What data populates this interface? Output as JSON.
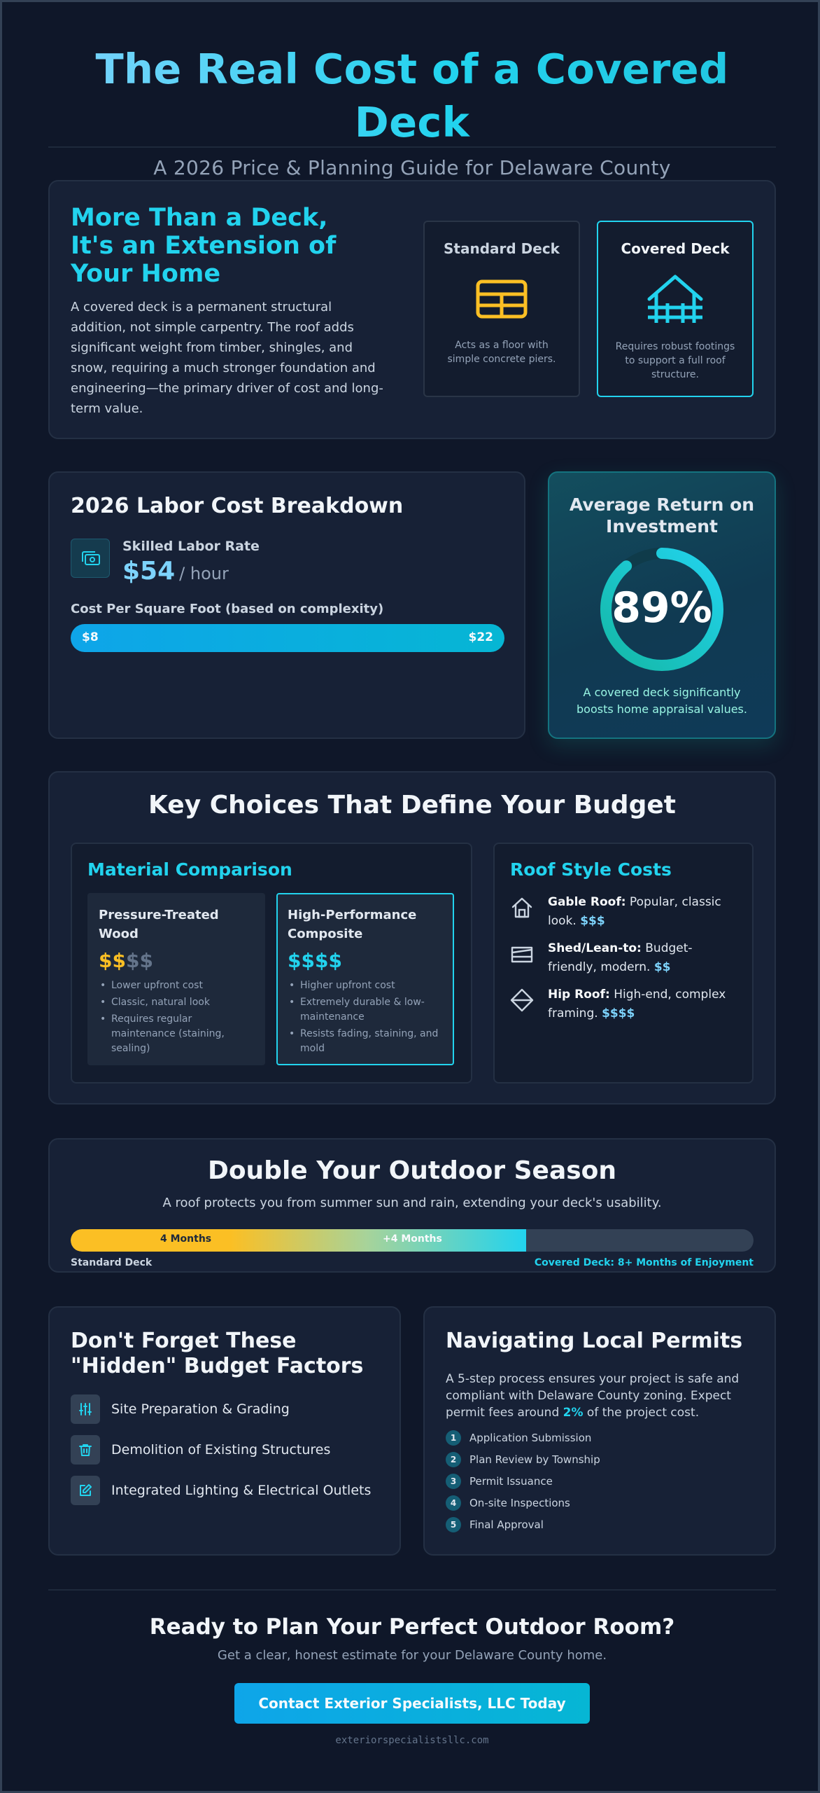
{
  "header": {
    "title": "The Real Cost of a Covered Deck",
    "subtitle": "A 2026 Price & Planning Guide for Delaware County"
  },
  "intro": {
    "title": "More Than a Deck, It's an Extension of Your Home",
    "body": "A covered deck is a permanent structural addition, not simple carpentry. The roof adds significant weight from timber, shingles, and snow, requiring a much stronger foundation and engineering—the primary driver of cost and long-term value.",
    "standard": {
      "title": "Standard Deck",
      "desc": "Acts as a floor with simple concrete piers.",
      "icon": "deck-floor-icon",
      "color": "#fbbf24"
    },
    "covered": {
      "title": "Covered Deck",
      "desc": "Requires robust footings to support a full roof structure.",
      "icon": "roofed-deck-icon",
      "color": "#22d3ee"
    }
  },
  "labor": {
    "title": "2026 Labor Cost Breakdown",
    "rate_label": "Skilled Labor Rate",
    "rate_value": "$54",
    "rate_unit": "/ hour",
    "psf_label": "Cost Per Square Foot (based on complexity)",
    "psf_min": "$8",
    "psf_max": "$22"
  },
  "roi": {
    "title": "Average Return on Investment",
    "value": "89%",
    "fraction": 0.89,
    "desc": "A covered deck significantly boosts home appraisal values."
  },
  "choices": {
    "title": "Key Choices That Define Your Budget",
    "materials": {
      "title": "Material Comparison",
      "items": [
        {
          "name": "Pressure-Treated Wood",
          "price_active": "$$",
          "price_inactive": "$$",
          "points": [
            "Lower upfront cost",
            "Classic, natural look",
            "Requires regular maintenance (staining, sealing)"
          ]
        },
        {
          "name": "High-Performance Composite",
          "price_active": "$$$$",
          "price_inactive": "",
          "points": [
            "Higher upfront cost",
            "Extremely durable & low-maintenance",
            "Resists fading, staining, and mold"
          ]
        }
      ]
    },
    "roofs": {
      "title": "Roof Style Costs",
      "items": [
        {
          "name": "Gable Roof:",
          "desc": "Popular, classic look.",
          "cost": "$$$",
          "icon": "house-icon"
        },
        {
          "name": "Shed/Lean-to:",
          "desc": "Budget-friendly, modern.",
          "cost": "$$",
          "icon": "shed-roof-icon"
        },
        {
          "name": "Hip Roof:",
          "desc": "High-end, complex framing.",
          "cost": "$$$$",
          "icon": "hip-roof-icon"
        }
      ]
    }
  },
  "season": {
    "title": "Double Your Outdoor Season",
    "subtitle": "A roof protects you from summer sun and rain, extending your deck's usability.",
    "seg1": "4 Months",
    "seg2": "+4 Months",
    "fill_fraction": 0.667,
    "left_label": "Standard Deck",
    "right_label": "Covered Deck: 8+ Months of Enjoyment"
  },
  "hidden": {
    "title": "Don't Forget These \"Hidden\" Budget Factors",
    "items": [
      {
        "label": "Site Preparation & Grading",
        "icon": "sliders-icon"
      },
      {
        "label": "Demolition of Existing Structures",
        "icon": "trash-icon"
      },
      {
        "label": "Integrated Lighting & Electrical Outlets",
        "icon": "edit-icon"
      }
    ]
  },
  "permits": {
    "title": "Navigating Local Permits",
    "text_before": "A 5-step process ensures your project is safe and compliant with Delaware County zoning. Expect permit fees around ",
    "fee": "2%",
    "text_after": " of the project cost.",
    "steps": [
      {
        "n": "1",
        "label": "Application Submission"
      },
      {
        "n": "2",
        "label": "Plan Review by Township"
      },
      {
        "n": "3",
        "label": "Permit Issuance"
      },
      {
        "n": "4",
        "label": "On-site Inspections"
      },
      {
        "n": "5",
        "label": "Final Approval"
      }
    ]
  },
  "cta": {
    "title": "Ready to Plan Your Perfect Outdoor Room?",
    "subtitle": "Get a clear, honest estimate for your Delaware County home.",
    "button": "Contact Exterior Specialists, LLC Today",
    "site": "exteriorspecialistsllc.com"
  }
}
